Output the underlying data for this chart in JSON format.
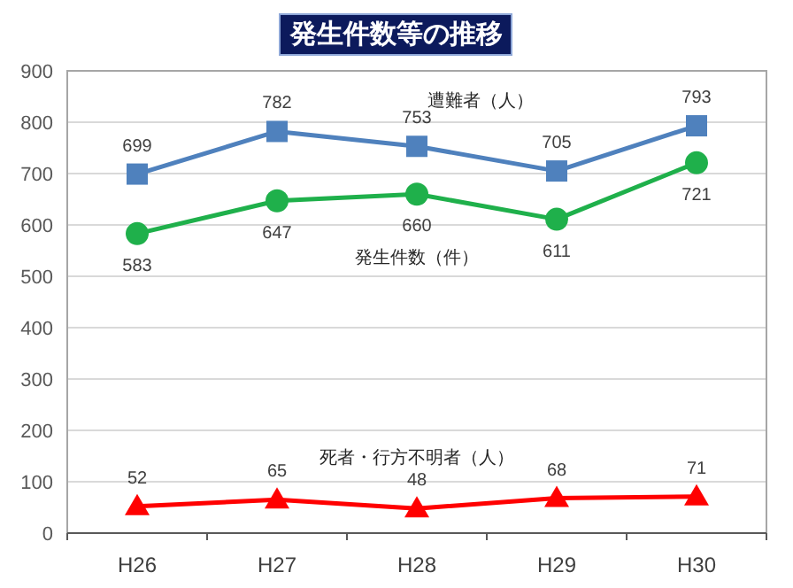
{
  "chart_data": {
    "type": "line",
    "title": "発生件数等の推移",
    "categories": [
      "H26",
      "H27",
      "H28",
      "H29",
      "H30"
    ],
    "series": [
      {
        "name": "遭難者（人）",
        "color": "#4f81bd",
        "marker": "square",
        "values": [
          699,
          782,
          753,
          705,
          793
        ]
      },
      {
        "name": "発生件数（件）",
        "color": "#1fb04b",
        "marker": "circle",
        "values": [
          583,
          647,
          660,
          611,
          721
        ]
      },
      {
        "name": "死者・行方不明者（人）",
        "color": "#ff0000",
        "marker": "triangle",
        "values": [
          52,
          65,
          48,
          68,
          71
        ]
      }
    ],
    "ylim": [
      0,
      900
    ],
    "yticks": [
      0,
      100,
      200,
      300,
      400,
      500,
      600,
      700,
      800,
      900
    ],
    "grid": "y",
    "data_labels": true
  }
}
